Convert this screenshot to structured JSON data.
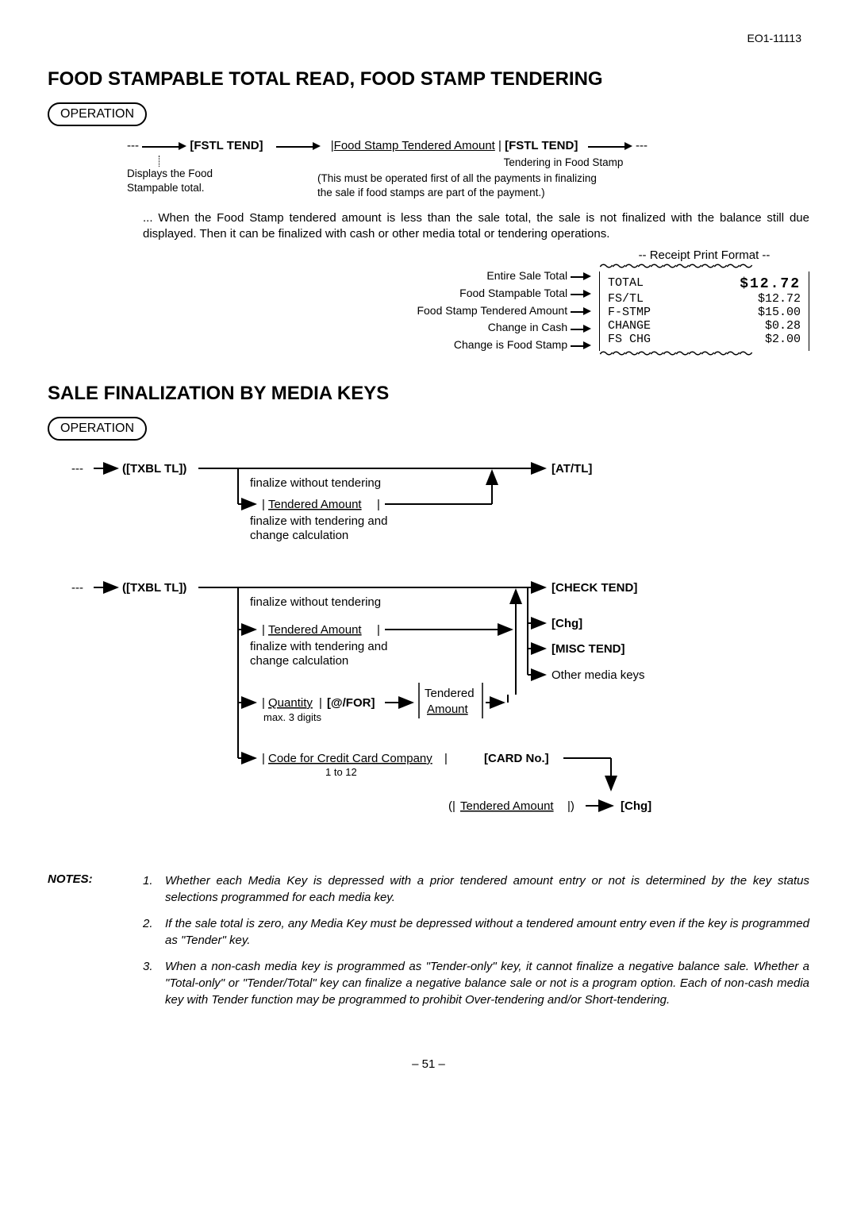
{
  "doc_id": "EO1-11113",
  "section1": {
    "title": "FOOD STAMPABLE TOTAL READ, FOOD STAMP TENDERING",
    "operation_label": "OPERATION",
    "flow": {
      "dashes": "---",
      "fstl_tend": "[FSTL TEND]",
      "tendered_amount_label": "Food Stamp Tendered Amount",
      "displays_line1": "Displays the Food",
      "displays_line2": "Stampable total.",
      "tender_caption": "Tendering in Food Stamp",
      "tender_note1": "(This must be operated first of all the payments in finalizing",
      "tender_note2": "the sale if food stamps are part of the payment.)"
    },
    "body_text": "...  When the Food Stamp tendered amount is less than the sale total, the sale is not finalized with the balance still due displayed.  Then it can be finalized with cash or other media total or tendering operations.",
    "receipt": {
      "caption": "-- Receipt Print Format --",
      "labels": [
        "Entire Sale Total",
        "Food Stampable Total",
        "Food Stamp Tendered Amount",
        "Change in Cash",
        "Change is Food Stamp"
      ],
      "rows": [
        {
          "k": "TOTAL",
          "v": "$12.72",
          "big": true
        },
        {
          "k": "FS/TL",
          "v": "$12.72"
        },
        {
          "k": "F-STMP",
          "v": "$15.00"
        },
        {
          "k": "CHANGE",
          "v": "$0.28"
        },
        {
          "k": "FS CHG",
          "v": "$2.00"
        }
      ]
    }
  },
  "section2": {
    "title": "SALE FINALIZATION BY MEDIA KEYS",
    "operation_label": "OPERATION",
    "labels": {
      "txbl": "([TXBL TL])",
      "at_tl": "[AT/TL]",
      "check_tend": "[CHECK TEND]",
      "chg": "[Chg]",
      "misc_tend": "[MISC TEND]",
      "other_media": "Other media keys",
      "fin_without": "finalize without tendering",
      "tendered_amount": "Tendered Amount",
      "fin_with1": "finalize with tendering and",
      "fin_with2": "change calculation",
      "quantity": "Quantity",
      "at_for": "[@/FOR]",
      "max3": "max. 3 digits",
      "tendered": "Tendered",
      "amount": "Amount",
      "cc_code": "Code for Credit Card Company",
      "card_no": "[CARD No.]",
      "one_to_12": "1 to 12",
      "paren_open": "(|",
      "paren_close": "|)"
    }
  },
  "notes": {
    "label": "NOTES:",
    "items": [
      "Whether each Media Key is depressed with a prior tendered amount entry or not is determined by the key status selections programmed for each media key.",
      "If the sale total is zero, any Media Key must be depressed without a tendered amount entry even if the key is programmed as \"Tender\" key.",
      "When a non-cash media key is programmed as \"Tender-only\" key, it cannot finalize a negative balance sale.  Whether a \"Total-only\" or \"Tender/Total\" key can finalize a negative balance sale or not is a program option.  Each of non-cash media key with Tender function may be programmed to prohibit Over-tendering and/or Short-tendering."
    ]
  },
  "page_num": "– 51 –"
}
